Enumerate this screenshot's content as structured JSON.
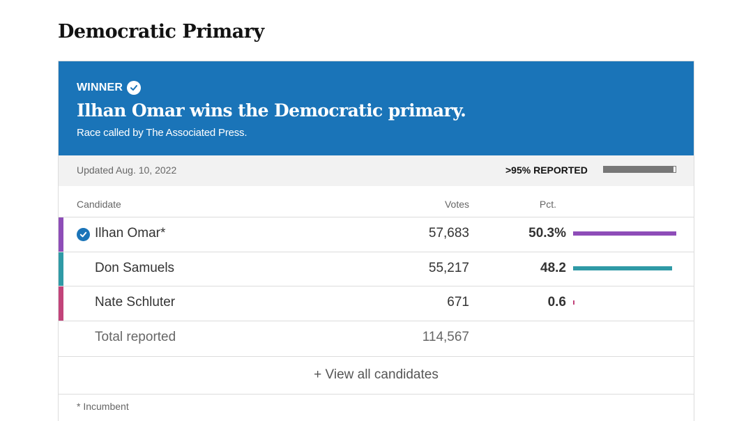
{
  "section": {
    "title": "Democratic Primary"
  },
  "winner": {
    "label": "WINNER",
    "headline": "Ilhan Omar wins the Democratic primary.",
    "subtext": "Race called by The Associated Press."
  },
  "status": {
    "updated": "Updated Aug. 10, 2022",
    "reported_label": ">95% REPORTED",
    "reported_fraction": 0.97
  },
  "table": {
    "headers": {
      "candidate": "Candidate",
      "votes": "Votes",
      "pct": "Pct."
    },
    "rows": [
      {
        "name": "Ilhan Omar*",
        "votes": "57,683",
        "pct": "50.3%",
        "pct_value": 50.3,
        "color": "#8e4db8",
        "winner": true
      },
      {
        "name": "Don Samuels",
        "votes": "55,217",
        "pct": "48.2",
        "pct_value": 48.2,
        "color": "#2f9aa6",
        "winner": false
      },
      {
        "name": "Nate Schluter",
        "votes": "671",
        "pct": "0.6",
        "pct_value": 0.6,
        "color": "#c2447a",
        "winner": false
      }
    ],
    "total": {
      "label": "Total reported",
      "votes": "114,567"
    }
  },
  "view_all": "+ View all candidates",
  "footnote": "* Incumbent",
  "colors": {
    "banner": "#1a74b8",
    "reported_bar": "#777777"
  }
}
